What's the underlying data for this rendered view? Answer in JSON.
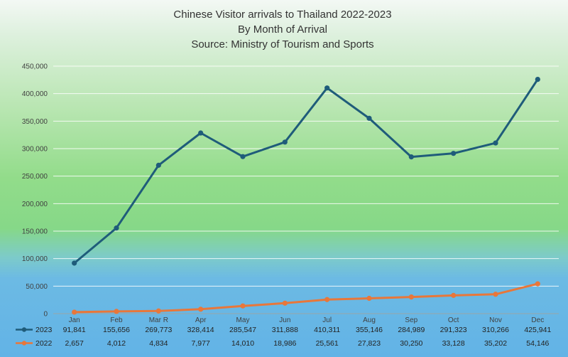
{
  "chart_data": {
    "type": "line",
    "title_lines": [
      "Chinese Visitor arrivals to Thailand 2022-2023",
      "By Month of Arrival",
      "Source: Ministry of Tourism and Sports"
    ],
    "categories": [
      "Jan",
      "Feb",
      "Mar R",
      "Apr",
      "May",
      "Jun",
      "Jul",
      "Aug",
      "Sep",
      "Oct",
      "Nov",
      "Dec"
    ],
    "y_ticks": [
      "0",
      "50,000",
      "100,000",
      "150,000",
      "200,000",
      "250,000",
      "300,000",
      "350,000",
      "400,000",
      "450,000"
    ],
    "ylim": [
      0,
      450000
    ],
    "grid": true,
    "legend": "data-table-bottom",
    "series": [
      {
        "name": "2023",
        "color": "#1F5C7A",
        "values": [
          91841,
          155656,
          269773,
          328414,
          285547,
          311888,
          410311,
          355146,
          284989,
          291323,
          310266,
          425941
        ],
        "labels": [
          "91,841",
          "155,656",
          "269,773",
          "328,414",
          "285,547",
          "311,888",
          "410,311",
          "355,146",
          "284,989",
          "291,323",
          "310,266",
          "425,941"
        ]
      },
      {
        "name": "2022",
        "color": "#E8773A",
        "values": [
          2657,
          4012,
          4834,
          7977,
          14010,
          18986,
          25561,
          27823,
          30250,
          33128,
          35202,
          54146
        ],
        "labels": [
          "2,657",
          "4,012",
          "4,834",
          "7,977",
          "14,010",
          "18,986",
          "25,561",
          "27,823",
          "30,250",
          "33,128",
          "35,202",
          "54,146"
        ]
      }
    ]
  }
}
